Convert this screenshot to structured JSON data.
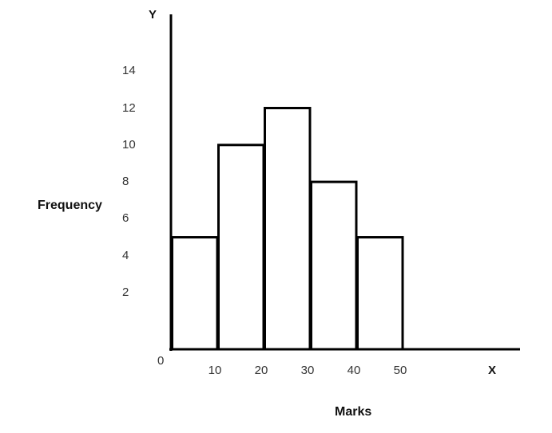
{
  "chart_data": {
    "type": "bar",
    "subtype": "histogram",
    "title": "",
    "xlabel": "Marks",
    "ylabel": "Frequency",
    "x_axis_name": "X",
    "y_axis_name": "Y",
    "origin_label": "0",
    "bins": [
      {
        "range": "0-10",
        "from": 0,
        "to": 10,
        "value": 5
      },
      {
        "range": "10-20",
        "from": 10,
        "to": 20,
        "value": 10
      },
      {
        "range": "20-30",
        "from": 20,
        "to": 30,
        "value": 12
      },
      {
        "range": "30-40",
        "from": 30,
        "to": 40,
        "value": 8
      },
      {
        "range": "40-50",
        "from": 40,
        "to": 50,
        "value": 5
      }
    ],
    "categories": [
      "0-10",
      "10-20",
      "20-30",
      "30-40",
      "40-50"
    ],
    "values": [
      5,
      10,
      12,
      8,
      5
    ],
    "x_ticks": [
      "10",
      "20",
      "30",
      "40",
      "50"
    ],
    "y_ticks": [
      "2",
      "4",
      "6",
      "8",
      "10",
      "12",
      "14"
    ],
    "ylim": [
      0,
      14
    ],
    "xlim": [
      0,
      50
    ],
    "grid": false,
    "legend": null,
    "bar_fill": "#ffffff",
    "bar_stroke": "#000000"
  }
}
